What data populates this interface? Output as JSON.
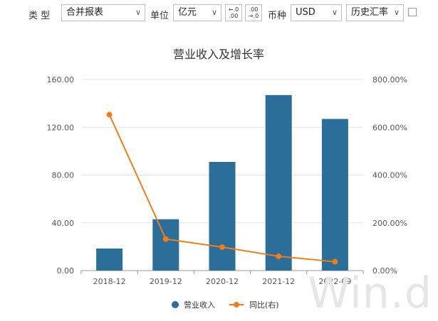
{
  "toolbar": {
    "type_label": "类 型",
    "report_type": "合并报表",
    "unit_label": "单位",
    "unit_value": "亿元",
    "currency_label": "币种",
    "currency_value": "USD",
    "rate_value": "历史汇率"
  },
  "watermark": "Win.d",
  "colors": {
    "bar": "#2a6e99",
    "line": "#f07d1a"
  },
  "chart_data": {
    "type": "bar",
    "title": "营业收入及增长率",
    "categories": [
      "2018-12",
      "2019-12",
      "2020-12",
      "2021-12",
      "2022-09"
    ],
    "series": [
      {
        "name": "营业收入",
        "type": "bar",
        "axis": "left",
        "values": [
          18.5,
          43.0,
          91.0,
          147.0,
          127.0
        ]
      },
      {
        "name": "同比(右)",
        "type": "line",
        "axis": "right",
        "values": [
          653.0,
          132.0,
          98.0,
          60.0,
          37.0
        ]
      }
    ],
    "y_left": {
      "ticks": [
        "0.00",
        "40.00",
        "80.00",
        "120.00",
        "160.00"
      ],
      "lim": [
        0,
        160
      ]
    },
    "y_right": {
      "ticks": [
        "0.00%",
        "200.00%",
        "400.00%",
        "600.00%",
        "800.00%"
      ],
      "lim": [
        0,
        800
      ]
    },
    "grid": "horizontal",
    "legend": "bottom-center"
  }
}
